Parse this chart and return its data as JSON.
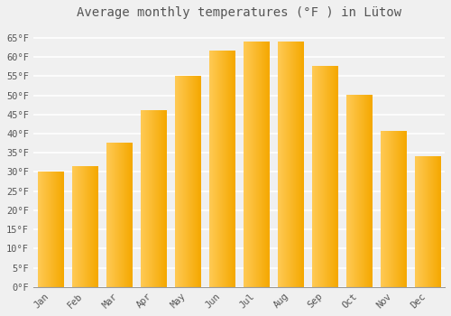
{
  "title": "Average monthly temperatures (°F ) in Lütow",
  "months": [
    "Jan",
    "Feb",
    "Mar",
    "Apr",
    "May",
    "Jun",
    "Jul",
    "Aug",
    "Sep",
    "Oct",
    "Nov",
    "Dec"
  ],
  "values": [
    30,
    31.5,
    37.5,
    46,
    55,
    61.5,
    64,
    64,
    57.5,
    50,
    40.5,
    34
  ],
  "bar_color_left": "#FFCA55",
  "bar_color_right": "#F5A800",
  "background_color": "#f0f0f0",
  "grid_color": "#ffffff",
  "text_color": "#555555",
  "ylim": [
    0,
    68
  ],
  "yticks": [
    0,
    5,
    10,
    15,
    20,
    25,
    30,
    35,
    40,
    45,
    50,
    55,
    60,
    65
  ],
  "ylabel_suffix": "°F",
  "title_fontsize": 10,
  "tick_fontsize": 7.5,
  "font_family": "monospace"
}
